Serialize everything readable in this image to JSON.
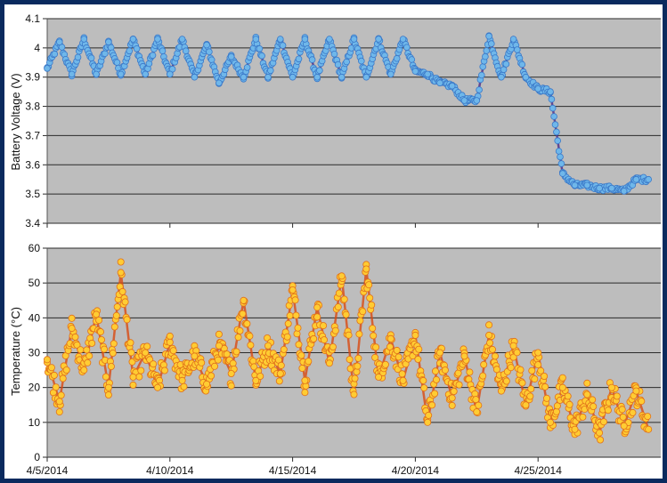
{
  "colors": {
    "frame_border": "#0a2a5e",
    "plot_background": "#bdbdbd",
    "gridline": "#2a2a2a",
    "voltage_fill": "#6fb7ea",
    "voltage_edge": "#3a78c8",
    "voltage_line": "#4b2a86",
    "temperature_fill": "#ffcc33",
    "temperature_edge": "#e0701a",
    "temperature_line": "#d94a12"
  },
  "chart_data": [
    {
      "type": "scatter",
      "title": "",
      "xlabel": "",
      "ylabel": "Battery Voltage (V)",
      "ylim": [
        3.4,
        4.1
      ],
      "yticks": [
        "3.4",
        "3.5",
        "3.6",
        "3.7",
        "3.8",
        "3.9",
        "4",
        "4.1"
      ],
      "xlim": [
        "4/5/2014",
        "4/30/2014"
      ],
      "grid": true,
      "marker": "circle",
      "series": [
        {
          "x": [
            "4/5/2014",
            "4/5/2014",
            "4/6/2014",
            "4/6/2014",
            "4/7/2014",
            "4/7/2014",
            "4/8/2014",
            "4/8/2014",
            "4/9/2014",
            "4/9/2014",
            "4/10/2014",
            "4/10/2014",
            "4/11/2014",
            "4/11/2014",
            "4/12/2014",
            "4/12/2014",
            "4/13/2014",
            "4/13/2014",
            "4/14/2014",
            "4/14/2014",
            "4/15/2014",
            "4/15/2014",
            "4/16/2014",
            "4/16/2014",
            "4/17/2014",
            "4/17/2014",
            "4/18/2014",
            "4/18/2014",
            "4/19/2014",
            "4/19/2014",
            "4/20/2014",
            "4/20/2014",
            "4/21/2014",
            "4/21/2014",
            "4/22/2014",
            "4/22/2014",
            "4/23/2014",
            "4/23/2014",
            "4/24/2014",
            "4/24/2014",
            "4/25/2014",
            "4/25/2014",
            "4/26/2014",
            "4/26/2014",
            "4/27/2014",
            "4/27/2014",
            "4/28/2014",
            "4/28/2014",
            "4/29/2014",
            "4/29/2014"
          ],
          "y": [
            3.93,
            4.02,
            3.91,
            4.03,
            3.91,
            4.02,
            3.91,
            4.03,
            3.91,
            4.03,
            3.91,
            4.03,
            3.9,
            4.01,
            3.88,
            3.97,
            3.9,
            4.03,
            3.9,
            4.03,
            3.9,
            4.03,
            3.9,
            4.03,
            3.9,
            4.03,
            3.9,
            4.03,
            3.91,
            4.03,
            3.92,
            3.91,
            3.88,
            3.87,
            3.82,
            3.82,
            4.04,
            3.9,
            4.03,
            3.9,
            3.86,
            3.85,
            3.57,
            3.53,
            3.53,
            3.52,
            3.52,
            3.51,
            3.55,
            3.55
          ]
        }
      ]
    },
    {
      "type": "scatter",
      "title": "",
      "xlabel": "",
      "ylabel": "Temperature (°C)",
      "ylim": [
        0,
        60
      ],
      "yticks": [
        "0",
        "10",
        "20",
        "30",
        "40",
        "50",
        "60"
      ],
      "xticks": [
        "4/5/2014",
        "4/10/2014",
        "4/15/2014",
        "4/20/2014",
        "4/25/2014"
      ],
      "xlim": [
        "4/5/2014",
        "4/30/2014"
      ],
      "grid": true,
      "marker": "circle",
      "series": [
        {
          "x": [
            "4/5/2014",
            "4/5/2014",
            "4/6/2014",
            "4/6/2014",
            "4/7/2014",
            "4/7/2014",
            "4/8/2014",
            "4/8/2014",
            "4/9/2014",
            "4/9/2014",
            "4/10/2014",
            "4/10/2014",
            "4/11/2014",
            "4/11/2014",
            "4/12/2014",
            "4/12/2014",
            "4/13/2014",
            "4/13/2014",
            "4/14/2014",
            "4/14/2014",
            "4/15/2014",
            "4/15/2014",
            "4/16/2014",
            "4/16/2014",
            "4/17/2014",
            "4/17/2014",
            "4/18/2014",
            "4/18/2014",
            "4/19/2014",
            "4/19/2014",
            "4/20/2014",
            "4/20/2014",
            "4/21/2014",
            "4/21/2014",
            "4/22/2014",
            "4/22/2014",
            "4/23/2014",
            "4/23/2014",
            "4/24/2014",
            "4/24/2014",
            "4/25/2014",
            "4/25/2014",
            "4/26/2014",
            "4/26/2014",
            "4/27/2014",
            "4/27/2014",
            "4/28/2014",
            "4/28/2014",
            "4/29/2014",
            "4/29/2014"
          ],
          "y": [
            28,
            16,
            37,
            25,
            41,
            20,
            53,
            23,
            30,
            20,
            33,
            22,
            29,
            21,
            32,
            24,
            45,
            22,
            32,
            24,
            48,
            22,
            43,
            27,
            52,
            18,
            54,
            23,
            34,
            22,
            35,
            10,
            30,
            17,
            29,
            13,
            35,
            19,
            32,
            15,
            30,
            10,
            20,
            8,
            18,
            7,
            20,
            9,
            19,
            8
          ]
        }
      ]
    }
  ]
}
